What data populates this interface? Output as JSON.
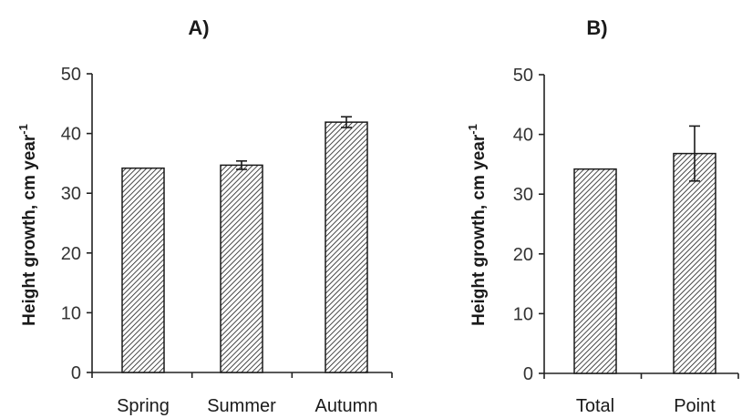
{
  "chart_data": [
    {
      "type": "bar",
      "title": "A)",
      "ylabel": "Height growth, cm year",
      "ylabel_sup": "-1",
      "ylim": [
        0,
        50
      ],
      "yticks": [
        0,
        10,
        20,
        30,
        40,
        50
      ],
      "grid": false,
      "categories": [
        "Spring",
        "Summer",
        "Autumn"
      ],
      "values": [
        34.2,
        34.7,
        41.9
      ],
      "error": [
        0,
        0.7,
        0.9
      ],
      "fill_pattern": "diagonal-hatch",
      "colors": {
        "bar_fill": "#ffffff",
        "hatch": "#1a1a1a",
        "axis": "#222222"
      }
    },
    {
      "type": "bar",
      "title": "B)",
      "ylabel": "Height growth, cm year",
      "ylabel_sup": "-1",
      "ylim": [
        0,
        50
      ],
      "yticks": [
        0,
        10,
        20,
        30,
        40,
        50
      ],
      "grid": false,
      "categories": [
        "Total",
        "Point"
      ],
      "values": [
        34.2,
        36.8
      ],
      "error": [
        0,
        4.6
      ],
      "fill_pattern": "diagonal-hatch",
      "colors": {
        "bar_fill": "#ffffff",
        "hatch": "#1a1a1a",
        "axis": "#222222"
      }
    }
  ]
}
